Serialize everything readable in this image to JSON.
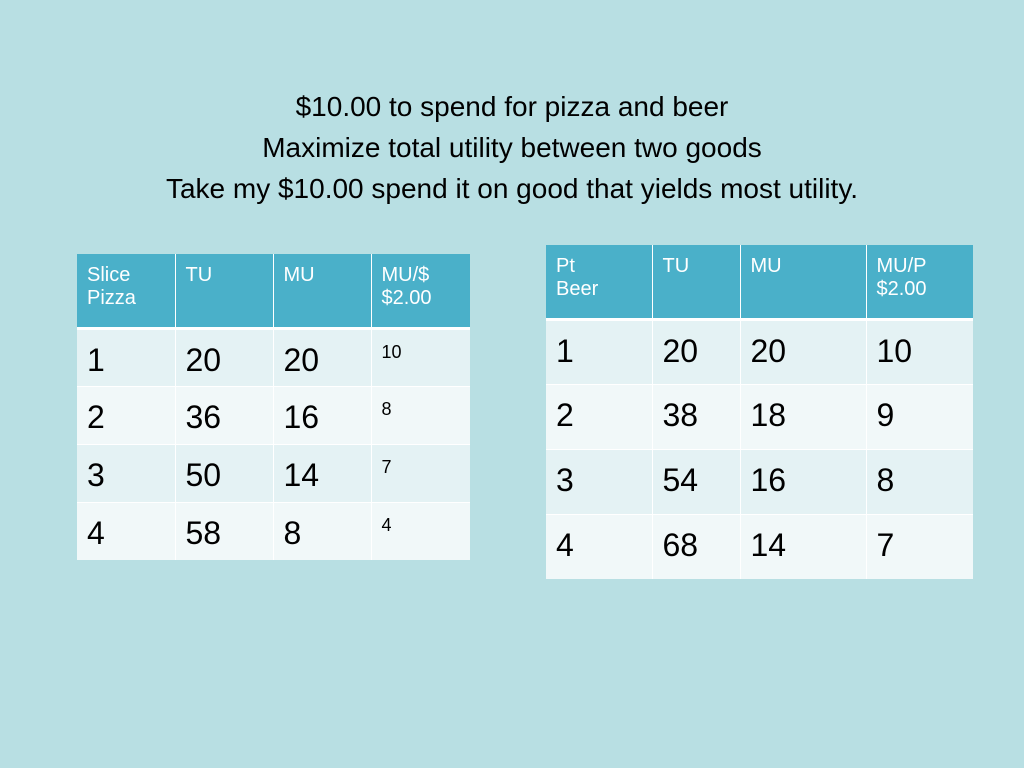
{
  "title": {
    "lines": [
      "$10.00 to spend for pizza and beer",
      "Maximize total utility between two goods",
      "Take my $10.00 spend it on good that yields most utility."
    ]
  },
  "pizza_table": {
    "headers": [
      {
        "line1": "Slice",
        "line2": "Pizza"
      },
      {
        "line1": "TU",
        "line2": ""
      },
      {
        "line1": "MU",
        "line2": ""
      },
      {
        "line1": "MU/$",
        "line2": "$2.00"
      }
    ],
    "rows": [
      [
        "1",
        "20",
        "20",
        "10"
      ],
      [
        "2",
        "36",
        "16",
        "8"
      ],
      [
        "3",
        "50",
        "14",
        "7"
      ],
      [
        "4",
        "58",
        "8",
        "4"
      ]
    ]
  },
  "beer_table": {
    "headers": [
      {
        "line1": "Pt",
        "line2": "Beer"
      },
      {
        "line1": "TU",
        "line2": ""
      },
      {
        "line1": "MU",
        "line2": ""
      },
      {
        "line1": "MU/P",
        "line2": "$2.00"
      }
    ],
    "rows": [
      [
        "1",
        "20",
        "20",
        "10"
      ],
      [
        "2",
        "38",
        "18",
        "9"
      ],
      [
        "3",
        "54",
        "16",
        "8"
      ],
      [
        "4",
        "68",
        "14",
        "7"
      ]
    ]
  },
  "colors": {
    "background": "#b8dfe3",
    "header": "#4ab0c9",
    "row_odd": "#e4f2f4",
    "row_even": "#f1f8f9"
  }
}
